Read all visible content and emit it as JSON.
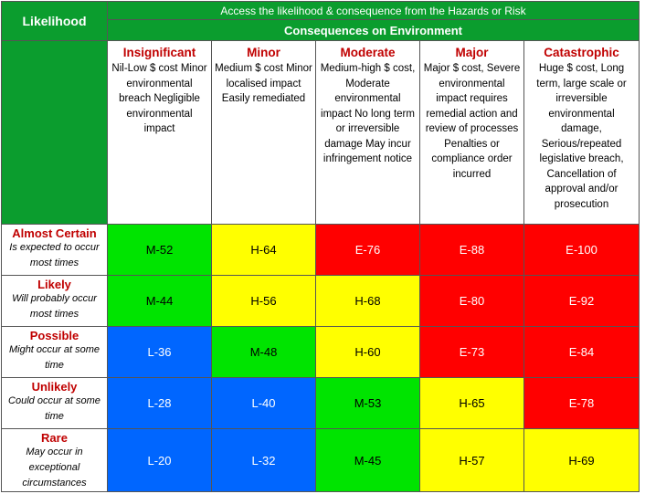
{
  "header": {
    "likelihood_label": "Likelihood",
    "intro": "Access the likelihood & consequence from the Hazards or Risk",
    "consequences_title": "Consequences on Environment"
  },
  "columns": [
    {
      "title": "Insignificant",
      "desc": "Nil-Low $ cost Minor environmental breach Negligible environmental impact"
    },
    {
      "title": "Minor",
      "desc": "Medium $ cost Minor localised impact Easily remediated"
    },
    {
      "title": "Moderate",
      "desc": "Medium-high $ cost, Moderate environmental impact No long term or irreversible damage May incur infringement notice"
    },
    {
      "title": "Major",
      "desc": "Major $ cost, Severe environmental impact requires remedial action and review of processes Penalties or compliance order incurred"
    },
    {
      "title": "Catastrophic",
      "desc": "Huge $ cost, Long term, large scale or irreversible environmental damage, Serious/repeated legislative breach, Cancellation of approval and/or prosecution"
    }
  ],
  "rows": [
    {
      "title": "Almost Certain",
      "desc": "Is expected to occur most times",
      "cells": [
        "M-52",
        "H-64",
        "E-76",
        "E-88",
        "E-100"
      ]
    },
    {
      "title": "Likely",
      "desc": "Will probably occur most times",
      "cells": [
        "M-44",
        "H-56",
        "H-68",
        "E-80",
        "E-92"
      ]
    },
    {
      "title": "Possible",
      "desc": "Might occur at some time",
      "cells": [
        "L-36",
        "M-48",
        "H-60",
        "E-73",
        "E-84"
      ]
    },
    {
      "title": "Unlikely",
      "desc": "Could occur at some time",
      "cells": [
        "L-28",
        "L-40",
        "M-53",
        "H-65",
        "E-78"
      ]
    },
    {
      "title": "Rare",
      "desc": "May occur in exceptional circumstances",
      "cells": [
        "L-20",
        "L-32",
        "M-45",
        "H-57",
        "H-69"
      ]
    }
  ],
  "colors": {
    "header_green": "#0b9d2e",
    "L": "#0066ff",
    "M": "#00e400",
    "H": "#ffff00",
    "E": "#ff0000",
    "label_red": "#c00000"
  }
}
